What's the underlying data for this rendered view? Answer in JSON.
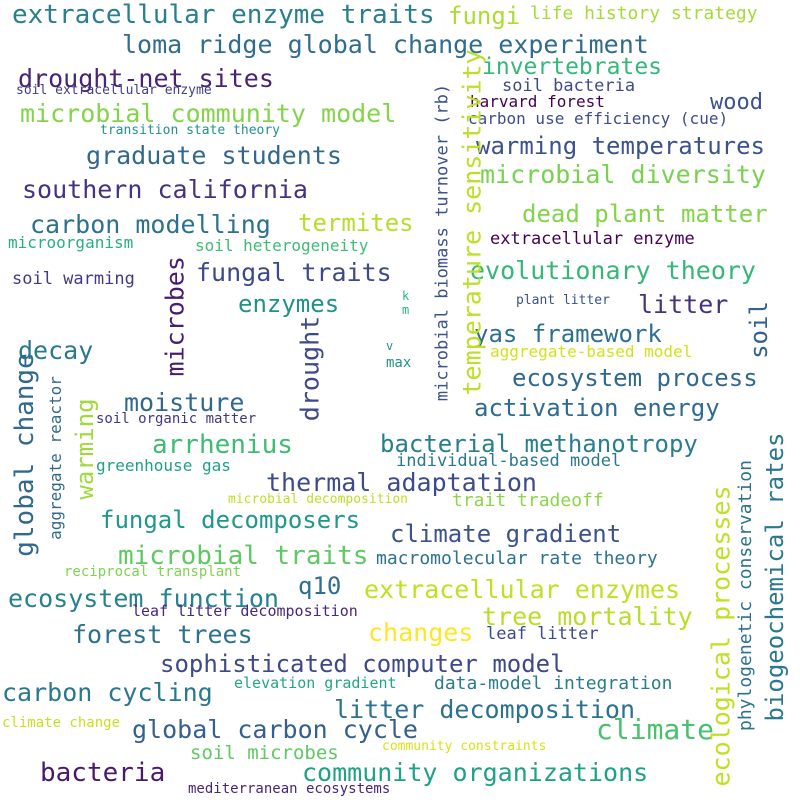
{
  "words": [
    {
      "text": "extracellular enzyme traits",
      "color": "#2a7f8e"
    },
    {
      "text": "fungi",
      "color": "#addc30"
    },
    {
      "text": "life history strategy",
      "color": "#a5db36"
    },
    {
      "text": "loma ridge global change experiment",
      "color": "#2f6c8e"
    },
    {
      "text": "drought-net sites",
      "color": "#482475"
    },
    {
      "text": "invertebrates",
      "color": "#35b779"
    },
    {
      "text": "soil extracellular enzyme",
      "color": "#433e85"
    },
    {
      "text": "soil bacteria",
      "color": "#3e4a89"
    },
    {
      "text": "microbial community model",
      "color": "#84d44b"
    },
    {
      "text": "wood",
      "color": "#3b528b"
    },
    {
      "text": "harvard forest",
      "color": "#440154"
    },
    {
      "text": "carbon use efficiency (cue)",
      "color": "#3e4c8a"
    },
    {
      "text": "transition state theory",
      "color": "#21918c"
    },
    {
      "text": "graduate students",
      "color": "#31688e"
    },
    {
      "text": "warming temperatures",
      "color": "#3b528b"
    },
    {
      "text": "southern california",
      "color": "#46327e"
    },
    {
      "text": "microbial diversity",
      "color": "#7ad151"
    },
    {
      "text": "dead plant matter",
      "color": "#84d44b"
    },
    {
      "text": "carbon modelling",
      "color": "#2c728e"
    },
    {
      "text": "termites",
      "color": "#b5de2b"
    },
    {
      "text": "extracellular enzyme",
      "color": "#440154"
    },
    {
      "text": "microorganism",
      "color": "#29af7f"
    },
    {
      "text": "soil heterogeneity",
      "color": "#3dbc74"
    },
    {
      "text": "fungal traits",
      "color": "#3e4989"
    },
    {
      "text": "evolutionary theory",
      "color": "#35b779"
    },
    {
      "text": "soil warming",
      "color": "#453882"
    },
    {
      "text": "enzymes",
      "color": "#21918c"
    },
    {
      "text": "litter",
      "color": "#46337f"
    },
    {
      "text": "plant litter",
      "color": "#3b528b"
    },
    {
      "text": "yas framework",
      "color": "#2d708e"
    },
    {
      "text": "decay",
      "color": "#2a788e"
    },
    {
      "text": "aggregate-based model",
      "color": "#d2e21b"
    },
    {
      "text": "ecosystem process",
      "color": "#31688e"
    },
    {
      "text": "moisture",
      "color": "#31688e"
    },
    {
      "text": "soil organic matter",
      "color": "#453781"
    },
    {
      "text": "activation energy",
      "color": "#2f6b8e"
    },
    {
      "text": "arrhenius",
      "color": "#3fbc73"
    },
    {
      "text": "bacterial methanotropy",
      "color": "#277f8e"
    },
    {
      "text": "individual-based model",
      "color": "#2a788e"
    },
    {
      "text": "greenhouse gas",
      "color": "#1fa088"
    },
    {
      "text": "thermal adaptation",
      "color": "#3e4a89"
    },
    {
      "text": "microbial decomposition",
      "color": "#bddf26"
    },
    {
      "text": "trait tradeoff",
      "color": "#8bd646"
    },
    {
      "text": "fungal decomposers",
      "color": "#1f988b"
    },
    {
      "text": "climate gradient",
      "color": "#3b528b"
    },
    {
      "text": "microbial traits",
      "color": "#5ec962"
    },
    {
      "text": "macromolecular rate theory",
      "color": "#2c728e"
    },
    {
      "text": "reciprocal transplant",
      "color": "#7fd34e"
    },
    {
      "text": "ecosystem function",
      "color": "#26828e"
    },
    {
      "text": "q10",
      "color": "#2e6f8e"
    },
    {
      "text": "extracellular enzymes",
      "color": "#c2df23"
    },
    {
      "text": "leaf litter decomposition",
      "color": "#482878"
    },
    {
      "text": "tree mortality",
      "color": "#b8de29"
    },
    {
      "text": "forest trees",
      "color": "#2c728e"
    },
    {
      "text": "changes",
      "color": "#fde725"
    },
    {
      "text": "leaf litter",
      "color": "#3e4a89"
    },
    {
      "text": "sophisticated computer model",
      "color": "#3e4989"
    },
    {
      "text": "carbon cycling",
      "color": "#2a788e"
    },
    {
      "text": "elevation gradient",
      "color": "#22a785"
    },
    {
      "text": "data-model integration",
      "color": "#287c8e"
    },
    {
      "text": "litter decomposition",
      "color": "#2c728e"
    },
    {
      "text": "climate change",
      "color": "#c8e020"
    },
    {
      "text": "global carbon cycle",
      "color": "#34608d"
    },
    {
      "text": "climate",
      "color": "#48c16e"
    },
    {
      "text": "soil microbes",
      "color": "#5ec962"
    },
    {
      "text": "community constraints",
      "color": "#d8e219"
    },
    {
      "text": "bacteria",
      "color": "#481a6c"
    },
    {
      "text": "community organizations",
      "color": "#1fa187"
    },
    {
      "text": "mediterranean ecosystems",
      "color": "#482677"
    },
    {
      "text": "k",
      "color": "#2db27d"
    },
    {
      "text": "m",
      "color": "#2db27d"
    },
    {
      "text": "v",
      "color": "#21918c"
    },
    {
      "text": "max",
      "color": "#21918c"
    }
  ],
  "vertical_words": [
    {
      "text": "temperature sensitivity",
      "color": "#bddf26"
    },
    {
      "text": "microbial biomass turnover (rb)",
      "color": "#3b528b"
    },
    {
      "text": "microbes",
      "color": "#481d6f"
    },
    {
      "text": "drought",
      "color": "#3e4989"
    },
    {
      "text": "global change",
      "color": "#31688e"
    },
    {
      "text": "aggregate reactor",
      "color": "#31688e"
    },
    {
      "text": "warming",
      "color": "#a0da39"
    },
    {
      "text": "soil",
      "color": "#34618d"
    },
    {
      "text": "biogeochemical rates",
      "color": "#2a788e"
    },
    {
      "text": "ecological processes",
      "color": "#c2df23"
    },
    {
      "text": "phylogenetic conservation",
      "color": "#2c728e"
    }
  ]
}
